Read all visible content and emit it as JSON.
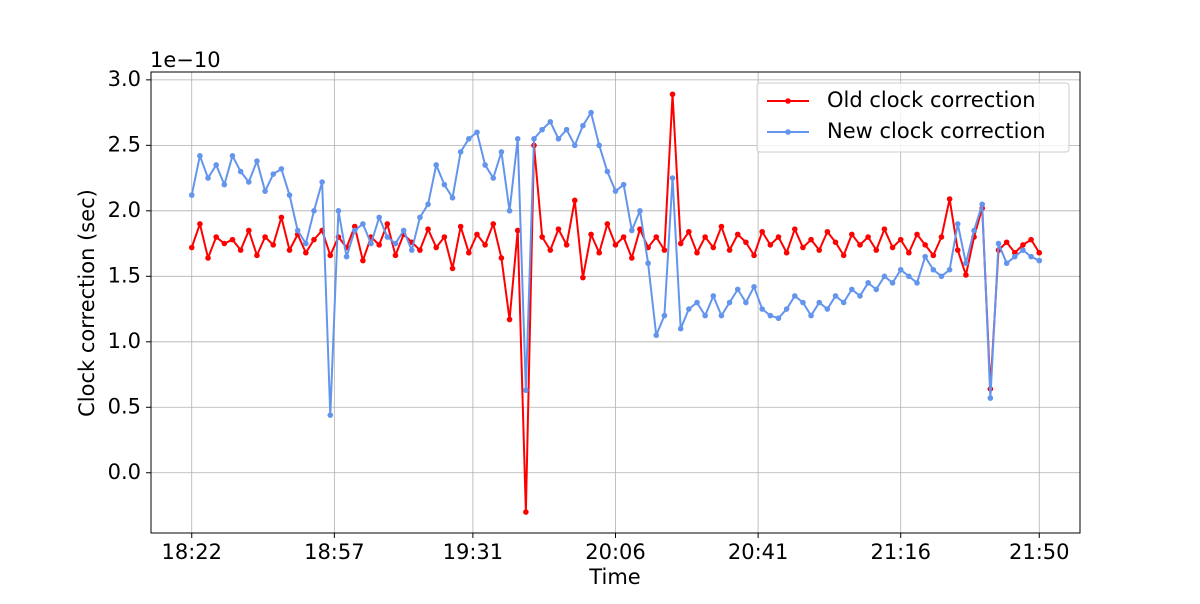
{
  "chart_data": {
    "type": "line",
    "offset_label": "1e−10",
    "xlabel": "Time",
    "ylabel": "Clock correction (sec)",
    "x": [
      "18:22",
      "18:24",
      "18:26",
      "18:28",
      "18:30",
      "18:32",
      "18:34",
      "18:36",
      "18:38",
      "18:40",
      "18:42",
      "18:44",
      "18:46",
      "18:48",
      "18:50",
      "18:52",
      "18:54",
      "18:56",
      "18:58",
      "19:00",
      "19:02",
      "19:04",
      "19:06",
      "19:08",
      "19:10",
      "19:12",
      "19:14",
      "19:16",
      "19:18",
      "19:20",
      "19:22",
      "19:24",
      "19:26",
      "19:28",
      "19:30",
      "19:32",
      "19:34",
      "19:36",
      "19:38",
      "19:40",
      "19:42",
      "19:44",
      "19:46",
      "19:48",
      "19:50",
      "19:52",
      "19:54",
      "19:56",
      "19:58",
      "20:00",
      "20:02",
      "20:04",
      "20:06",
      "20:08",
      "20:10",
      "20:12",
      "20:14",
      "20:16",
      "20:18",
      "20:20",
      "20:22",
      "20:24",
      "20:26",
      "20:28",
      "20:30",
      "20:32",
      "20:34",
      "20:36",
      "20:38",
      "20:40",
      "20:42",
      "20:44",
      "20:46",
      "20:48",
      "20:50",
      "20:52",
      "20:54",
      "20:56",
      "20:58",
      "21:00",
      "21:02",
      "21:04",
      "21:06",
      "21:08",
      "21:10",
      "21:12",
      "21:14",
      "21:16",
      "21:18",
      "21:20",
      "21:22",
      "21:24",
      "21:26",
      "21:28",
      "21:30",
      "21:32",
      "21:34",
      "21:36",
      "21:38",
      "21:40",
      "21:42",
      "21:44",
      "21:46",
      "21:48",
      "21:50"
    ],
    "series": [
      {
        "name": "Old clock correction",
        "color": "#ff0000",
        "values": [
          1.72,
          1.9,
          1.64,
          1.8,
          1.75,
          1.78,
          1.7,
          1.85,
          1.66,
          1.8,
          1.74,
          1.95,
          1.7,
          1.82,
          1.68,
          1.78,
          1.85,
          1.66,
          1.8,
          1.72,
          1.88,
          1.62,
          1.8,
          1.74,
          1.9,
          1.66,
          1.82,
          1.76,
          1.7,
          1.86,
          1.72,
          1.8,
          1.56,
          1.88,
          1.68,
          1.82,
          1.74,
          1.9,
          1.64,
          1.17,
          1.85,
          -0.3,
          2.5,
          1.8,
          1.7,
          1.86,
          1.74,
          2.08,
          1.49,
          1.82,
          1.68,
          1.9,
          1.74,
          1.8,
          1.64,
          1.86,
          1.72,
          1.8,
          1.7,
          2.89,
          1.75,
          1.84,
          1.68,
          1.8,
          1.72,
          1.88,
          1.7,
          1.82,
          1.76,
          1.66,
          1.84,
          1.74,
          1.8,
          1.68,
          1.86,
          1.72,
          1.78,
          1.7,
          1.84,
          1.76,
          1.66,
          1.82,
          1.74,
          1.8,
          1.7,
          1.86,
          1.72,
          1.78,
          1.68,
          1.82,
          1.74,
          1.66,
          1.8,
          2.09,
          1.7,
          1.51,
          1.8,
          2.02,
          0.64,
          1.7,
          1.76,
          1.68,
          1.74,
          1.78,
          1.68
        ]
      },
      {
        "name": "New clock correction",
        "color": "#6495ed",
        "values": [
          2.12,
          2.42,
          2.25,
          2.35,
          2.2,
          2.42,
          2.3,
          2.22,
          2.38,
          2.15,
          2.28,
          2.32,
          2.12,
          1.85,
          1.75,
          2.0,
          2.22,
          0.44,
          2.0,
          1.65,
          1.85,
          1.9,
          1.75,
          1.95,
          1.8,
          1.75,
          1.85,
          1.7,
          1.95,
          2.05,
          2.35,
          2.2,
          2.1,
          2.45,
          2.55,
          2.6,
          2.35,
          2.25,
          2.45,
          2.0,
          2.55,
          0.63,
          2.55,
          2.62,
          2.68,
          2.55,
          2.62,
          2.5,
          2.65,
          2.75,
          2.5,
          2.3,
          2.15,
          2.2,
          1.85,
          2.0,
          1.6,
          1.05,
          1.2,
          2.25,
          1.1,
          1.25,
          1.3,
          1.2,
          1.35,
          1.2,
          1.3,
          1.4,
          1.3,
          1.42,
          1.25,
          1.2,
          1.18,
          1.25,
          1.35,
          1.3,
          1.2,
          1.3,
          1.25,
          1.35,
          1.3,
          1.4,
          1.35,
          1.45,
          1.4,
          1.5,
          1.45,
          1.55,
          1.5,
          1.45,
          1.65,
          1.55,
          1.5,
          1.55,
          1.9,
          1.6,
          1.85,
          2.05,
          0.57,
          1.75,
          1.6,
          1.65,
          1.7,
          1.65,
          1.62
        ]
      }
    ],
    "xlim": [
      "18:12",
      "22:00"
    ],
    "xticks": [
      "18:22",
      "18:57",
      "19:31",
      "20:06",
      "20:41",
      "21:16",
      "21:50"
    ],
    "ylim": [
      -0.46,
      3.06
    ],
    "yticks": [
      {
        "value": 0,
        "label": "0.0"
      },
      0.5,
      {
        "value": 1,
        "label": "1.0"
      },
      1.5,
      {
        "value": 2,
        "label": "2.0"
      },
      2.5,
      {
        "value": 3,
        "label": "3.0"
      }
    ],
    "grid": true,
    "legend": "upper right"
  }
}
